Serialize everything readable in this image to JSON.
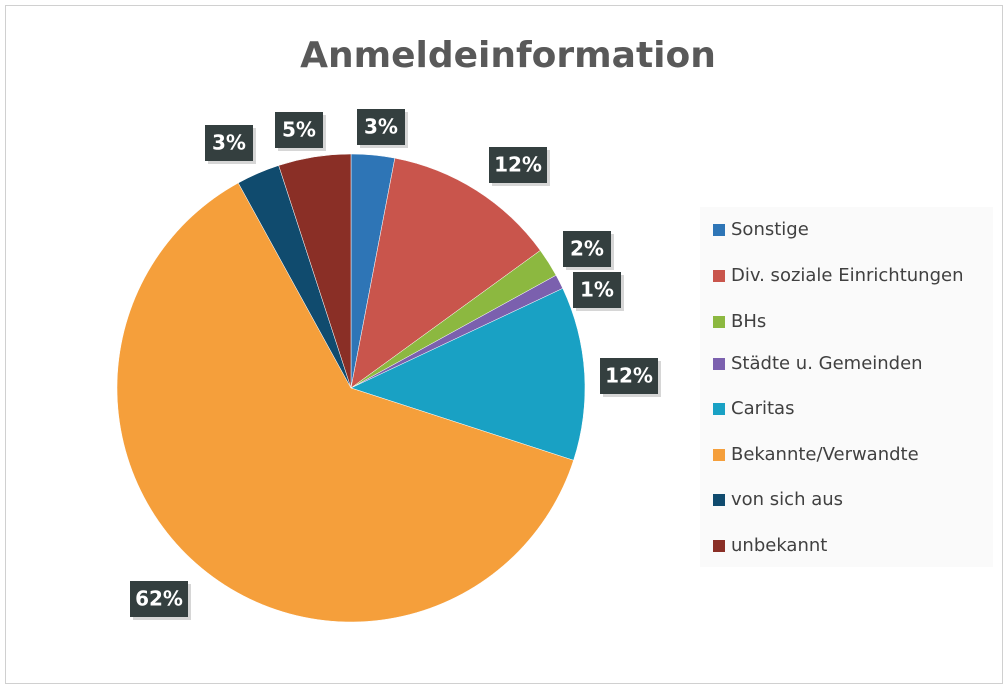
{
  "chart_data": {
    "type": "pie",
    "title": "Anmeldeinformation",
    "categories": [
      "Sonstige",
      "Div. soziale Einrichtungen",
      "BHs",
      "Städte u. Gemeinden",
      "Caritas",
      "Bekannte/Verwandte",
      "von sich aus",
      "unbekannt"
    ],
    "values": [
      3,
      12,
      2,
      1,
      12,
      62,
      3,
      5
    ],
    "value_labels": [
      "3%",
      "12%",
      "2%",
      "1%",
      "12%",
      "62%",
      "3%",
      "5%"
    ],
    "colors": [
      "#2e75b6",
      "#c9554c",
      "#8cb840",
      "#7b60ae",
      "#19a1c4",
      "#f59f3b",
      "#104b6e",
      "#8a2f26"
    ],
    "legend": "right"
  }
}
